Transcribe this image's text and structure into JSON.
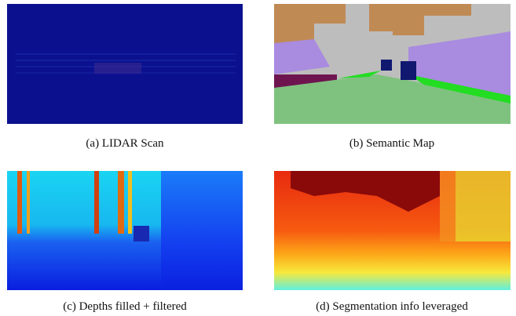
{
  "figure": {
    "panels": [
      {
        "caption": "(a) LIDAR Scan"
      },
      {
        "caption": "(b) Semantic Map"
      },
      {
        "caption": "(c) Depths filled + filtered"
      },
      {
        "caption": "(d) Segmentation info leveraged"
      }
    ]
  }
}
